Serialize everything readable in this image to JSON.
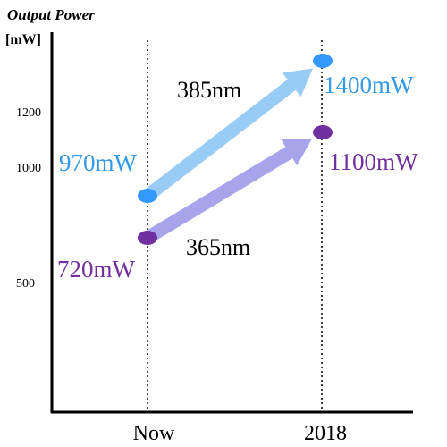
{
  "chart_data": {
    "type": "line",
    "title": "Output Power",
    "ylabel": "[mW]",
    "categories": [
      "Now",
      "2018"
    ],
    "yticks": [
      {
        "value": 1200,
        "label": "1200"
      },
      {
        "value": 1000,
        "label": "1000"
      },
      {
        "value": 500,
        "label": "500"
      }
    ],
    "series": [
      {
        "name": "385nm",
        "values": [
          970,
          1400
        ],
        "labels": [
          "970mW",
          "1400mW"
        ],
        "marker_color": "#3399ff",
        "arrow_color": "#99ccf5",
        "text_color": "#3399e6"
      },
      {
        "name": "365nm",
        "values": [
          720,
          1100
        ],
        "labels": [
          "720mW",
          "1100mW"
        ],
        "marker_color": "#7030a0",
        "arrow_color": "#a7a4ec",
        "text_color": "#7030a0"
      }
    ]
  }
}
